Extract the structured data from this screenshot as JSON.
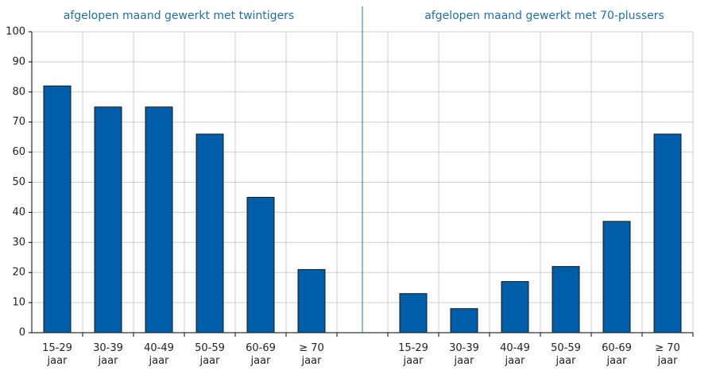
{
  "chart_data": {
    "type": "bar",
    "color": "#005ea8",
    "ylim": [
      0,
      100
    ],
    "yticks": [
      0,
      10,
      20,
      30,
      40,
      50,
      60,
      70,
      80,
      90,
      100
    ],
    "grid": true,
    "panels": [
      {
        "title": "afgelopen maand gewerkt met twintigers",
        "categories": [
          "15-29 jaar",
          "30-39 jaar",
          "40-49 jaar",
          "50-59 jaar",
          "60-69 jaar",
          "≥ 70 jaar"
        ],
        "values": [
          82,
          75,
          75,
          66,
          45,
          21
        ]
      },
      {
        "title": "afgelopen maand gewerkt met 70-plussers",
        "categories": [
          "15-29 jaar",
          "30-39 jaar",
          "40-49 jaar",
          "50-59 jaar",
          "60-69 jaar",
          "≥ 70 jaar"
        ],
        "values": [
          13,
          8,
          17,
          22,
          37,
          66
        ]
      }
    ]
  }
}
